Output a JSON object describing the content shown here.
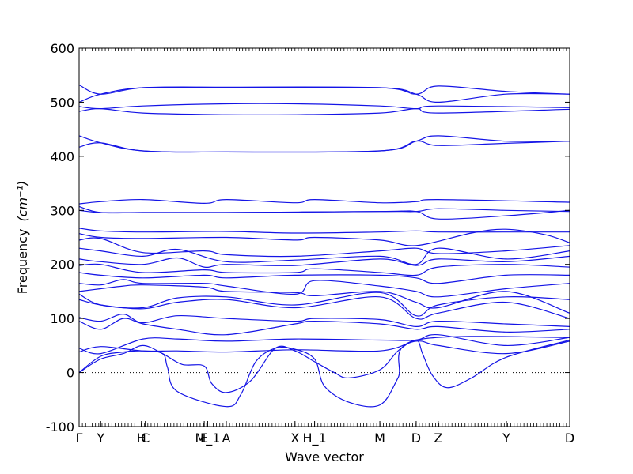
{
  "chart_data": {
    "type": "line",
    "title": "",
    "xlabel": "Wave vector",
    "ylabel": "Frequency",
    "ylabel_unit": "(cm⁻¹)",
    "ylim": [
      -100,
      600
    ],
    "yticks": [
      -100,
      0,
      100,
      200,
      300,
      400,
      500,
      600
    ],
    "xlim": [
      0,
      1
    ],
    "x_ticks": [
      {
        "x": 0.0,
        "label": "Γ"
      },
      {
        "x": 0.044,
        "label": "Y"
      },
      {
        "x": 0.127,
        "label": "H"
      },
      {
        "x": 0.135,
        "label": "C"
      },
      {
        "x": 0.255,
        "label": "E"
      },
      {
        "x": 0.262,
        "label": "M_1"
      },
      {
        "x": 0.3,
        "label": "A"
      },
      {
        "x": 0.44,
        "label": "X"
      },
      {
        "x": 0.48,
        "label": "H_1"
      },
      {
        "x": 0.613,
        "label": "M"
      },
      {
        "x": 0.687,
        "label": "D"
      },
      {
        "x": 0.732,
        "label": "Z"
      },
      {
        "x": 0.871,
        "label": "Y"
      },
      {
        "x": 1.0,
        "label": "D"
      }
    ],
    "zero_line": true,
    "line_color": "#1414e6",
    "series": [
      {
        "x": [
          0,
          0.044,
          0.13,
          0.3,
          0.613,
          0.687,
          0.732,
          0.87,
          1.0
        ],
        "values": [
          500,
          515,
          527,
          527,
          527,
          515,
          500,
          515,
          515
        ]
      },
      {
        "x": [
          0,
          0.044,
          0.13,
          0.3,
          0.613,
          0.687,
          0.732,
          0.87,
          1.0
        ],
        "values": [
          532,
          515,
          527,
          528,
          527,
          515,
          530,
          520,
          515
        ]
      },
      {
        "x": [
          0,
          0.044,
          0.13,
          0.3,
          0.44,
          0.613,
          0.687,
          0.732,
          1.0
        ],
        "values": [
          492,
          488,
          493,
          497,
          497,
          493,
          488,
          493,
          490
        ]
      },
      {
        "x": [
          0,
          0.044,
          0.13,
          0.3,
          0.44,
          0.613,
          0.687,
          0.732,
          1.0
        ],
        "values": [
          483,
          488,
          480,
          477,
          477,
          480,
          488,
          480,
          487
        ]
      },
      {
        "x": [
          0,
          0.044,
          0.13,
          0.3,
          0.613,
          0.687,
          0.732,
          0.87,
          1.0
        ],
        "values": [
          438,
          425,
          410,
          408,
          410,
          428,
          438,
          428,
          428
        ]
      },
      {
        "x": [
          0,
          0.044,
          0.13,
          0.3,
          0.613,
          0.687,
          0.732,
          0.87,
          1.0
        ],
        "values": [
          417,
          425,
          410,
          408,
          410,
          428,
          420,
          424,
          428
        ]
      },
      {
        "x": [
          0,
          0.044,
          0.13,
          0.255,
          0.3,
          0.44,
          0.48,
          0.613,
          0.687,
          0.732,
          1.0
        ],
        "values": [
          312,
          316,
          320,
          313,
          320,
          314,
          320,
          314,
          316,
          320,
          315
        ]
      },
      {
        "x": [
          0,
          0.044,
          0.13,
          0.3,
          0.613,
          0.687,
          0.732,
          0.87,
          1.0
        ],
        "values": [
          307,
          296,
          296,
          296,
          298,
          298,
          303,
          300,
          298
        ]
      },
      {
        "x": [
          0,
          0.044,
          0.13,
          0.3,
          0.613,
          0.687,
          0.732,
          0.87,
          1.0
        ],
        "values": [
          300,
          296,
          296,
          296,
          298,
          298,
          284,
          290,
          300
        ]
      },
      {
        "x": [
          0,
          0.044,
          0.13,
          0.3,
          0.44,
          0.613,
          0.687,
          0.732,
          0.87,
          1.0
        ],
        "values": [
          267,
          262,
          260,
          261,
          258,
          260,
          262,
          260,
          260,
          260
        ]
      },
      {
        "x": [
          0,
          0.044,
          0.13,
          0.3,
          0.44,
          0.48,
          0.613,
          0.687,
          0.8,
          0.87,
          0.95,
          1.0
        ],
        "values": [
          257,
          250,
          248,
          250,
          245,
          250,
          245,
          235,
          258,
          265,
          255,
          240
        ]
      },
      {
        "x": [
          0,
          0.044,
          0.13,
          0.255,
          0.3,
          0.44,
          0.613,
          0.687,
          0.732,
          0.87,
          1.0
        ],
        "values": [
          245,
          248,
          222,
          225,
          218,
          215,
          225,
          230,
          220,
          225,
          235
        ]
      },
      {
        "x": [
          0,
          0.044,
          0.13,
          0.2,
          0.3,
          0.44,
          0.613,
          0.687,
          0.732,
          0.87,
          1.0
        ],
        "values": [
          230,
          225,
          215,
          228,
          205,
          208,
          215,
          200,
          230,
          210,
          225
        ]
      },
      {
        "x": [
          0,
          0.044,
          0.13,
          0.2,
          0.255,
          0.3,
          0.44,
          0.613,
          0.687,
          0.732,
          0.87,
          1.0
        ],
        "values": [
          210,
          205,
          200,
          212,
          195,
          200,
          198,
          210,
          198,
          210,
          205,
          215
        ]
      },
      {
        "x": [
          0,
          0.044,
          0.13,
          0.255,
          0.3,
          0.44,
          0.48,
          0.613,
          0.687,
          0.732,
          0.87,
          1.0
        ],
        "values": [
          198,
          200,
          185,
          190,
          185,
          185,
          192,
          185,
          180,
          195,
          200,
          195
        ]
      },
      {
        "x": [
          0,
          0.044,
          0.13,
          0.255,
          0.3,
          0.44,
          0.613,
          0.687,
          0.732,
          0.87,
          1.0
        ],
        "values": [
          185,
          180,
          175,
          180,
          175,
          180,
          180,
          175,
          165,
          180,
          180
        ]
      },
      {
        "x": [
          0,
          0.044,
          0.09,
          0.13,
          0.255,
          0.3,
          0.44,
          0.48,
          0.613,
          0.687,
          0.732,
          0.87,
          1.0
        ],
        "values": [
          165,
          162,
          172,
          165,
          165,
          160,
          145,
          170,
          160,
          150,
          140,
          155,
          165
        ]
      },
      {
        "x": [
          0,
          0.044,
          0.09,
          0.13,
          0.255,
          0.3,
          0.44,
          0.48,
          0.613,
          0.687,
          0.732,
          0.87,
          1.0
        ],
        "values": [
          150,
          155,
          160,
          162,
          158,
          150,
          148,
          142,
          150,
          130,
          120,
          150,
          110
        ]
      },
      {
        "x": [
          0,
          0.044,
          0.13,
          0.2,
          0.3,
          0.44,
          0.613,
          0.687,
          0.732,
          0.87,
          1.0
        ],
        "values": [
          145,
          125,
          120,
          138,
          140,
          125,
          148,
          105,
          125,
          140,
          135
        ]
      },
      {
        "x": [
          0,
          0.044,
          0.13,
          0.2,
          0.3,
          0.44,
          0.613,
          0.687,
          0.732,
          0.87,
          1.0
        ],
        "values": [
          135,
          125,
          118,
          130,
          135,
          120,
          140,
          100,
          110,
          130,
          100
        ]
      },
      {
        "x": [
          0,
          0.044,
          0.09,
          0.13,
          0.2,
          0.3,
          0.44,
          0.48,
          0.613,
          0.687,
          0.732,
          0.87,
          1.0
        ],
        "values": [
          102,
          95,
          108,
          92,
          105,
          100,
          95,
          100,
          98,
          85,
          95,
          90,
          85
        ]
      },
      {
        "x": [
          0,
          0.044,
          0.09,
          0.13,
          0.2,
          0.3,
          0.44,
          0.48,
          0.613,
          0.687,
          0.732,
          0.87,
          1.0
        ],
        "values": [
          95,
          80,
          100,
          90,
          80,
          70,
          90,
          95,
          90,
          80,
          85,
          75,
          80
        ]
      },
      {
        "x": [
          0,
          0.044,
          0.13,
          0.2,
          0.3,
          0.44,
          0.613,
          0.687,
          0.732,
          0.87,
          1.0
        ],
        "values": [
          45,
          35,
          62,
          62,
          58,
          62,
          60,
          60,
          70,
          50,
          65
        ]
      },
      {
        "x": [
          0,
          0.044,
          0.13,
          0.2,
          0.3,
          0.44,
          0.613,
          0.687,
          0.732,
          0.87,
          1.0
        ],
        "values": [
          38,
          48,
          40,
          40,
          38,
          42,
          40,
          58,
          50,
          35,
          58
        ]
      },
      {
        "x": [
          0,
          0.044,
          0.09,
          0.13,
          0.17,
          0.21,
          0.255,
          0.27,
          0.3,
          0.35,
          0.4,
          0.44,
          0.48,
          0.52,
          0.55,
          0.613,
          0.65,
          0.687,
          0.7,
          0.72,
          0.75,
          0.8,
          0.87,
          1.0
        ],
        "values": [
          0,
          25,
          35,
          50,
          35,
          15,
          12,
          -20,
          -37,
          -15,
          45,
          40,
          20,
          0,
          -10,
          5,
          40,
          60,
          35,
          -5,
          -28,
          -10,
          28,
          60
        ]
      },
      {
        "x": [
          0,
          0.044,
          0.09,
          0.13,
          0.17,
          0.18,
          0.2,
          0.3,
          0.33,
          0.36,
          0.4,
          0.44,
          0.48,
          0.5,
          0.55,
          0.613,
          0.65,
          0.687,
          1.0
        ],
        "values": [
          0,
          30,
          38,
          40,
          35,
          10,
          -35,
          -63,
          -40,
          20,
          45,
          43,
          25,
          -25,
          -55,
          -60,
          -10,
          60,
          65
        ]
      }
    ]
  }
}
